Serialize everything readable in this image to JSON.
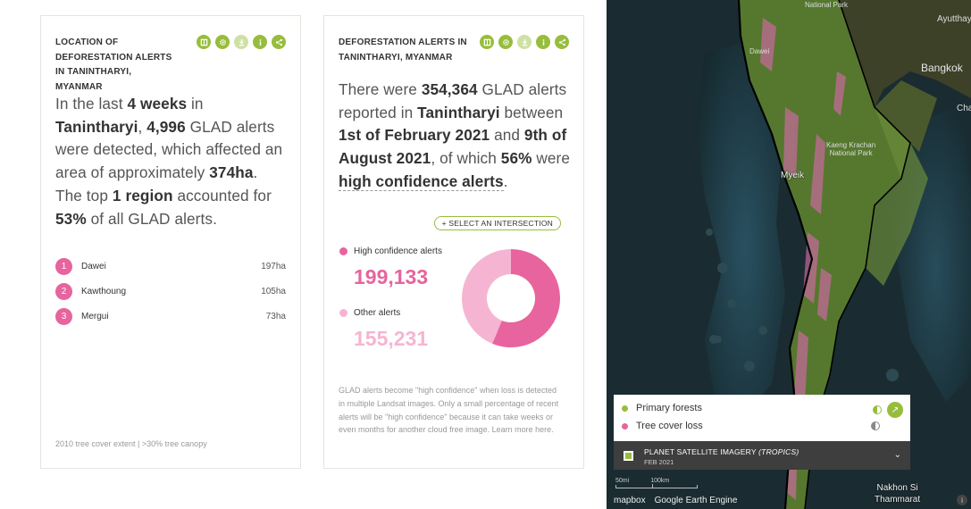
{
  "widget1": {
    "title": "LOCATION OF DEFORESTATION ALERTS IN TANINTHARYI, MYANMAR",
    "sentence": {
      "p1": "In the last ",
      "period": "4 weeks",
      "p2": " in ",
      "location": "Tanintharyi",
      "p3": ", ",
      "count": "4,996",
      "p4": " GLAD alerts were detected, which affected an area of approximately ",
      "area": "374ha",
      "p5": ". The top ",
      "top_n": "1",
      "p6": " ",
      "region_word": "region",
      "p7": " accounted for ",
      "pct": "53%",
      "p8": " of all GLAD alerts."
    },
    "regions": [
      {
        "rank": "1",
        "name": "Dawei",
        "value": "197ha"
      },
      {
        "rank": "2",
        "name": "Kawthoung",
        "value": "105ha"
      },
      {
        "rank": "3",
        "name": "Mergui",
        "value": "73ha"
      }
    ],
    "footnote": "2010 tree cover extent | >30% tree canopy"
  },
  "widget2": {
    "title": "DEFORESTATION ALERTS IN TANINTHARYI, MYANMAR",
    "sentence": {
      "p1": "There were ",
      "count": "354,364",
      "p2": " GLAD alerts reported in ",
      "location": "Tanintharyi",
      "p3": " between ",
      "start": "1st of February 2021",
      "p4": " and ",
      "end": "9th of August 2021",
      "p5": ", of which ",
      "pct": "56%",
      "p6": " were ",
      "link": "high confidence alerts",
      "p7": "."
    },
    "intersection_button": "+ SELECT AN INTERSECTION",
    "high_label": "High confidence alerts",
    "high_value": "199,133",
    "other_label": "Other alerts",
    "other_value": "155,231",
    "explanation": "GLAD alerts become \"high confidence\" when loss is detected in multiple Landsat images. Only a small percentage of recent alerts will be \"high confidence\" because it can take weeks or even months for another cloud free image. Learn more here."
  },
  "chart_data": {
    "type": "pie",
    "categories": [
      "High confidence alerts",
      "Other alerts"
    ],
    "values": [
      199133,
      155231
    ],
    "colors": [
      "#e7649e",
      "#f5b5d2"
    ]
  },
  "colors": {
    "accent": "#97bd3d",
    "high": "#e7649e",
    "other": "#f5b5d2"
  },
  "tool_icons": [
    "map-icon",
    "settings-icon",
    "download-icon",
    "info-icon",
    "share-icon"
  ],
  "map": {
    "labels": {
      "national_park_top": "National Park",
      "ayutthaya": "Ayutthay",
      "dawei": "Dawei",
      "bangkok": "Bangkok",
      "cha": "Cha",
      "kaeng": "Kaeng Krachan\nNational Park",
      "myeik": "Myeik",
      "nakhon": "Nakhon Si\nThammarat"
    },
    "legend": {
      "primary": "Primary forests",
      "loss": "Tree cover loss"
    },
    "basemap": {
      "title_main": "PLANET SATELLITE IMAGERY ",
      "title_em": "(TROPICS)",
      "date": "FEB 2021"
    },
    "scale": {
      "left": "50mi",
      "right": "100km"
    },
    "attribution": {
      "mapbox": "mapbox",
      "google": "Google Earth Engine"
    }
  }
}
